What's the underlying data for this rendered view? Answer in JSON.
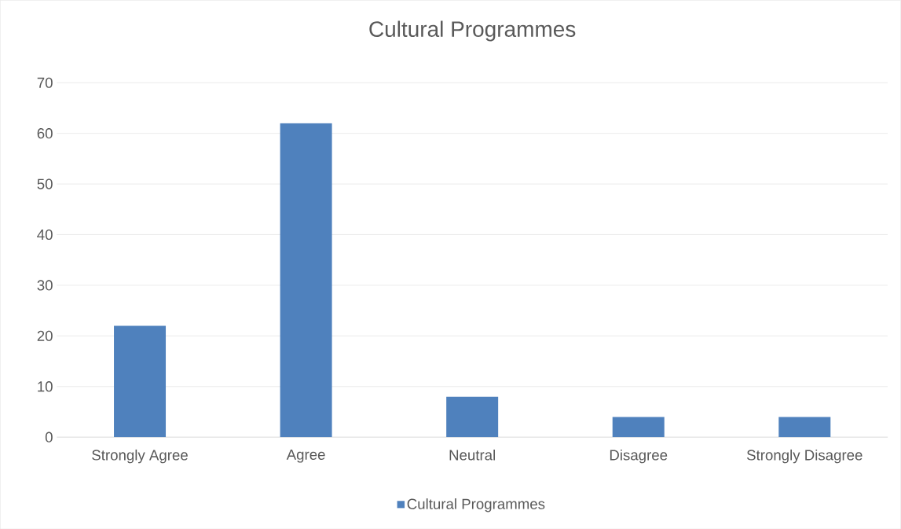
{
  "chart_data": {
    "type": "bar",
    "title": "Cultural Programmes",
    "categories": [
      "Strongly Agree",
      "Agree",
      "Neutral",
      "Disagree",
      "Strongly Disagree"
    ],
    "series": [
      {
        "name": "Cultural Programmes",
        "color": "#4f81bd",
        "values": [
          22,
          62,
          8,
          4,
          4
        ]
      }
    ],
    "ylim": [
      0,
      70
    ],
    "yticks": [
      0,
      10,
      20,
      30,
      40,
      50,
      60,
      70
    ],
    "grid": "y",
    "legend": "bottom"
  }
}
